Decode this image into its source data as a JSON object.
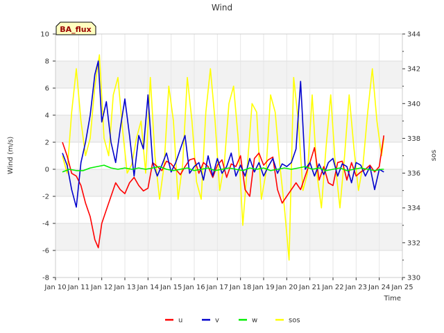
{
  "chart_data": {
    "type": "line",
    "title": "Wind",
    "xlabel": "Time",
    "ylabel": "Wind (m/s)",
    "y2label": "sos",
    "station_label": "BA_flux",
    "x_ticks": [
      "Jan 10",
      "Jan 11",
      "Jan 12",
      "Jan 13",
      "Jan 14",
      "Jan 15",
      "Jan 16",
      "Jan 17",
      "Jan 18",
      "Jan 19",
      "Jan 20",
      "Jan 21",
      "Jan 22",
      "Jan 23",
      "Jan 24",
      "Jan 25"
    ],
    "y_ticks": [
      "-8",
      "-6",
      "-4",
      "-2",
      "0",
      "2",
      "4",
      "6",
      "8",
      "10"
    ],
    "y2_ticks": [
      "330",
      "332",
      "334",
      "336",
      "338",
      "340",
      "342",
      "344"
    ],
    "xlim": [
      10,
      25
    ],
    "ylim": [
      -8,
      10
    ],
    "y2lim": [
      330,
      344
    ],
    "legend_position": "bottom-center",
    "series": [
      {
        "name": "u",
        "axis": "left",
        "color": "#ff0000",
        "x": [
          10.3,
          10.5,
          10.7,
          10.9,
          11.1,
          11.3,
          11.5,
          11.7,
          11.85,
          12.0,
          12.2,
          12.4,
          12.6,
          12.8,
          13.0,
          13.2,
          13.4,
          13.6,
          13.8,
          14.0,
          14.2,
          14.4,
          14.6,
          14.8,
          15.0,
          15.2,
          15.4,
          15.6,
          15.8,
          16.0,
          16.2,
          16.4,
          16.6,
          16.8,
          17.0,
          17.2,
          17.4,
          17.6,
          17.8,
          18.0,
          18.2,
          18.4,
          18.6,
          18.8,
          19.0,
          19.2,
          19.4,
          19.6,
          19.8,
          20.0,
          20.2,
          20.4,
          20.6,
          20.8,
          21.0,
          21.2,
          21.4,
          21.6,
          21.8,
          22.0,
          22.2,
          22.4,
          22.6,
          22.8,
          23.0,
          23.2,
          23.4,
          23.6,
          23.8,
          24.0,
          24.2
        ],
        "y": [
          2.0,
          1.0,
          -0.3,
          -0.5,
          -1.2,
          -2.5,
          -3.5,
          -5.2,
          -5.8,
          -4.0,
          -3.0,
          -2.0,
          -1.0,
          -1.5,
          -1.8,
          -1.0,
          -0.6,
          -1.2,
          -1.6,
          -1.4,
          0.5,
          0.2,
          -0.1,
          0.6,
          0.4,
          0.0,
          -0.4,
          0.2,
          0.7,
          0.8,
          -0.3,
          0.5,
          0.2,
          -0.6,
          0.3,
          0.7,
          -0.6,
          0.4,
          0.2,
          1.0,
          -1.5,
          -2.0,
          0.8,
          1.2,
          0.3,
          0.7,
          0.9,
          -1.5,
          -2.5,
          -2.0,
          -1.5,
          -1.0,
          -1.5,
          -0.5,
          0.5,
          1.6,
          -0.8,
          0.2,
          -1.0,
          -1.2,
          0.5,
          0.6,
          -0.8,
          0.5,
          -0.5,
          -0.2,
          0.0,
          0.3,
          -0.2,
          0.2,
          2.5
        ]
      },
      {
        "name": "v",
        "axis": "left",
        "color": "#0000cc",
        "x": [
          10.3,
          10.5,
          10.7,
          10.9,
          11.1,
          11.3,
          11.5,
          11.7,
          11.85,
          12.0,
          12.2,
          12.4,
          12.6,
          12.8,
          13.0,
          13.2,
          13.4,
          13.6,
          13.8,
          14.0,
          14.2,
          14.4,
          14.6,
          14.8,
          15.0,
          15.2,
          15.4,
          15.6,
          15.8,
          16.0,
          16.2,
          16.4,
          16.6,
          16.8,
          17.0,
          17.2,
          17.4,
          17.6,
          17.8,
          18.0,
          18.2,
          18.4,
          18.6,
          18.8,
          19.0,
          19.2,
          19.4,
          19.6,
          19.8,
          20.0,
          20.2,
          20.4,
          20.6,
          20.8,
          21.0,
          21.2,
          21.4,
          21.6,
          21.8,
          22.0,
          22.2,
          22.4,
          22.6,
          22.8,
          23.0,
          23.2,
          23.4,
          23.6,
          23.8,
          24.0,
          24.2
        ],
        "y": [
          1.2,
          0.3,
          -1.5,
          -2.8,
          0.5,
          2.0,
          4.0,
          7.0,
          8.0,
          3.5,
          5.0,
          2.0,
          0.5,
          3.0,
          5.2,
          2.5,
          -0.5,
          2.5,
          1.5,
          5.5,
          0.5,
          -0.5,
          0.3,
          1.2,
          -0.2,
          0.5,
          1.5,
          2.5,
          -0.3,
          0.2,
          0.5,
          -0.8,
          1.0,
          -0.5,
          0.8,
          -0.3,
          0.2,
          1.2,
          -0.5,
          0.3,
          -0.5,
          0.8,
          -0.2,
          0.5,
          -0.5,
          0.2,
          0.8,
          -0.3,
          0.4,
          0.2,
          0.5,
          1.5,
          6.5,
          0.0,
          0.5,
          -0.5,
          0.4,
          -0.4,
          0.5,
          0.8,
          -0.5,
          0.4,
          0.2,
          -1.0,
          0.5,
          0.3,
          -0.5,
          0.2,
          -1.5,
          0.0,
          -0.2
        ]
      },
      {
        "name": "w",
        "axis": "left",
        "color": "#00ee00",
        "x": [
          10.3,
          10.6,
          10.9,
          11.2,
          11.5,
          11.8,
          12.1,
          12.4,
          12.7,
          13.0,
          13.3,
          13.6,
          13.9,
          14.2,
          14.5,
          14.8,
          15.1,
          15.4,
          15.7,
          16.0,
          16.3,
          16.6,
          16.9,
          17.2,
          17.5,
          17.8,
          18.1,
          18.4,
          18.7,
          19.0,
          19.3,
          19.6,
          19.9,
          20.2,
          20.5,
          20.8,
          21.1,
          21.4,
          21.7,
          22.0,
          22.3,
          22.6,
          22.9,
          23.2,
          23.5,
          23.8,
          24.1,
          24.2
        ],
        "y": [
          -0.2,
          0.0,
          -0.1,
          -0.1,
          0.1,
          0.2,
          0.3,
          0.1,
          0.0,
          0.1,
          0.0,
          0.1,
          0.0,
          0.1,
          0.2,
          0.0,
          -0.1,
          0.0,
          0.1,
          -0.1,
          0.0,
          0.1,
          -0.1,
          0.0,
          0.1,
          0.0,
          -0.1,
          0.1,
          0.0,
          0.1,
          -0.1,
          0.0,
          0.1,
          0.0,
          0.1,
          0.2,
          0.0,
          0.1,
          -0.1,
          0.0,
          0.1,
          -0.1,
          0.0,
          0.1,
          0.0,
          -0.1,
          0.0,
          0.0
        ]
      },
      {
        "name": "sos",
        "axis": "right",
        "color": "#ffff00",
        "x": [
          10.3,
          10.5,
          10.7,
          10.9,
          11.1,
          11.3,
          11.5,
          11.7,
          11.9,
          12.1,
          12.3,
          12.5,
          12.7,
          12.9,
          13.1,
          13.3,
          13.5,
          13.7,
          13.9,
          14.1,
          14.3,
          14.5,
          14.7,
          14.9,
          15.1,
          15.3,
          15.5,
          15.7,
          15.9,
          16.1,
          16.3,
          16.5,
          16.7,
          16.9,
          17.1,
          17.3,
          17.5,
          17.7,
          17.9,
          18.1,
          18.3,
          18.5,
          18.7,
          18.9,
          19.1,
          19.3,
          19.5,
          19.7,
          19.9,
          20.1,
          20.3,
          20.5,
          20.7,
          20.9,
          21.1,
          21.3,
          21.5,
          21.7,
          21.9,
          22.1,
          22.3,
          22.5,
          22.7,
          22.9,
          23.1,
          23.3,
          23.5,
          23.7,
          23.9,
          24.1,
          24.2
        ],
        "y": [
          337.0,
          336.0,
          339.5,
          342.0,
          339.0,
          337.0,
          338.0,
          341.0,
          342.8,
          338.0,
          337.0,
          340.5,
          341.5,
          338.5,
          336.0,
          336.5,
          338.0,
          339.0,
          336.0,
          341.5,
          337.0,
          334.5,
          336.5,
          341.0,
          339.0,
          334.5,
          336.5,
          341.5,
          339.0,
          335.5,
          334.5,
          339.5,
          342.0,
          339.0,
          335.0,
          336.5,
          340.0,
          341.0,
          338.0,
          333.0,
          336.5,
          340.0,
          339.5,
          334.5,
          336.0,
          340.5,
          339.5,
          336.5,
          334.0,
          331.0,
          341.5,
          339.0,
          335.0,
          336.0,
          340.5,
          336.0,
          334.0,
          337.5,
          340.5,
          336.5,
          334.0,
          337.0,
          340.5,
          337.5,
          335.0,
          336.5,
          339.5,
          342.0,
          339.0,
          337.0,
          338.0
        ]
      }
    ]
  }
}
